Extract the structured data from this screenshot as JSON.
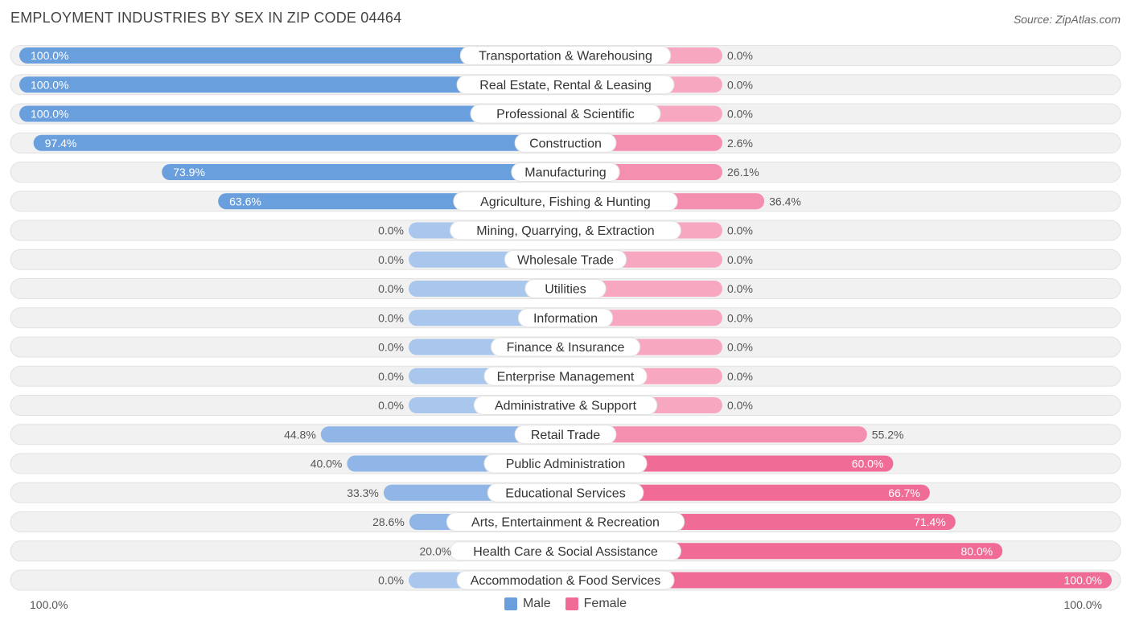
{
  "header": {
    "title": "EMPLOYMENT INDUSTRIES BY SEX IN ZIP CODE 04464",
    "source": "Source: ZipAtlas.com"
  },
  "legend": {
    "male_label": "Male",
    "female_label": "Female"
  },
  "axis": {
    "left_label": "100.0%",
    "right_label": "100.0%"
  },
  "colors": {
    "male_strong": "#6a9fdd",
    "male_light": "#a9c7ec",
    "female_strong": "#f06b95",
    "female_light": "#f7a8c0",
    "track": "#f1f1f1",
    "track_border": "#e2e2e2"
  },
  "chart_data": {
    "type": "bar",
    "title": "EMPLOYMENT INDUSTRIES BY SEX IN ZIP CODE 04464",
    "orientation": "horizontal-diverging",
    "xlim": [
      -100,
      100
    ],
    "categories": [
      "Transportation & Warehousing",
      "Real Estate, Rental & Leasing",
      "Professional & Scientific",
      "Construction",
      "Manufacturing",
      "Agriculture, Fishing & Hunting",
      "Mining, Quarrying, & Extraction",
      "Wholesale Trade",
      "Utilities",
      "Information",
      "Finance & Insurance",
      "Enterprise Management",
      "Administrative & Support",
      "Retail Trade",
      "Public Administration",
      "Educational Services",
      "Arts, Entertainment & Recreation",
      "Health Care & Social Assistance",
      "Accommodation & Food Services"
    ],
    "series": [
      {
        "name": "Male",
        "values": [
          100.0,
          100.0,
          100.0,
          97.4,
          73.9,
          63.6,
          0.0,
          0.0,
          0.0,
          0.0,
          0.0,
          0.0,
          0.0,
          44.8,
          40.0,
          33.3,
          28.6,
          20.0,
          0.0
        ],
        "labels": [
          "100.0%",
          "100.0%",
          "100.0%",
          "97.4%",
          "73.9%",
          "63.6%",
          "0.0%",
          "0.0%",
          "0.0%",
          "0.0%",
          "0.0%",
          "0.0%",
          "0.0%",
          "44.8%",
          "40.0%",
          "33.3%",
          "28.6%",
          "20.0%",
          "0.0%"
        ]
      },
      {
        "name": "Female",
        "values": [
          0.0,
          0.0,
          0.0,
          2.6,
          26.1,
          36.4,
          0.0,
          0.0,
          0.0,
          0.0,
          0.0,
          0.0,
          0.0,
          55.2,
          60.0,
          66.7,
          71.4,
          80.0,
          100.0
        ],
        "labels": [
          "0.0%",
          "0.0%",
          "0.0%",
          "2.6%",
          "26.1%",
          "36.4%",
          "0.0%",
          "0.0%",
          "0.0%",
          "0.0%",
          "0.0%",
          "0.0%",
          "0.0%",
          "55.2%",
          "60.0%",
          "66.7%",
          "71.4%",
          "80.0%",
          "100.0%"
        ]
      }
    ],
    "legend": [
      "Male",
      "Female"
    ]
  }
}
